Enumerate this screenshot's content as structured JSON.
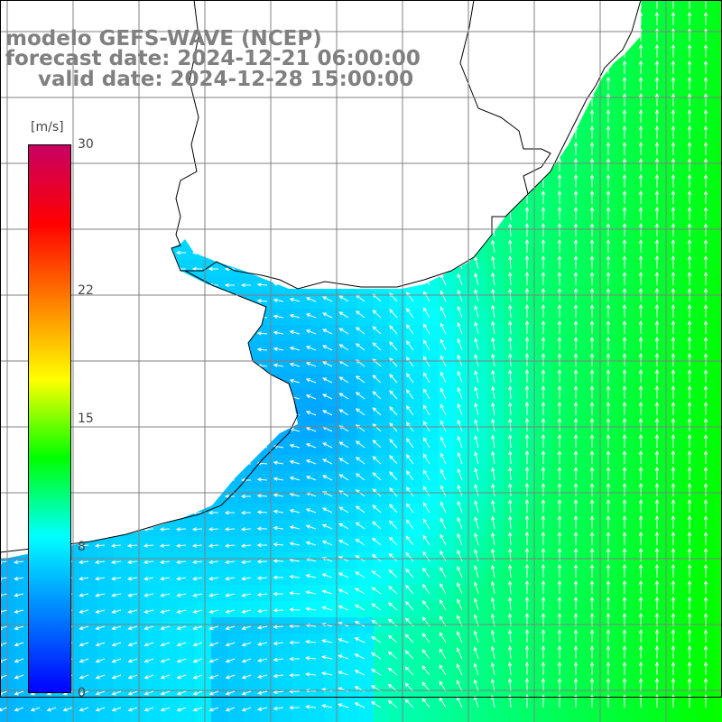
{
  "title": {
    "line1": "modelo GEFS-WAVE (NCEP)",
    "line2": "forecast date: 2024-12-21 06:00:00",
    "line3": "valid date: 2024-12-28 15:00:00"
  },
  "colorbar": {
    "unit": "[m/s]",
    "ticks": [
      {
        "label": "30",
        "value": 30
      },
      {
        "label": "22",
        "value": 22
      },
      {
        "label": "15",
        "value": 15
      },
      {
        "label": "8",
        "value": 8
      },
      {
        "label": "0",
        "value": 0
      }
    ],
    "range": [
      0,
      30
    ],
    "colors": [
      "#0000ff",
      "#0080ff",
      "#00ffff",
      "#00ff00",
      "#ffff00",
      "#ff8000",
      "#ff0000",
      "#c80064"
    ]
  },
  "map": {
    "field": "wind speed with direction arrows",
    "land_color": "#ffffff",
    "gridline_color": "#808080",
    "coastline_color": "#000000"
  }
}
